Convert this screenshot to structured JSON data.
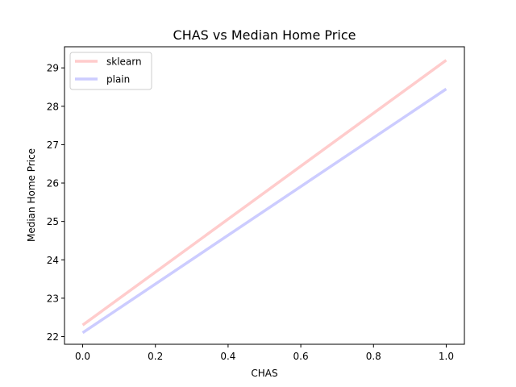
{
  "chart_data": {
    "type": "line",
    "title": "CHAS vs Median Home Price",
    "xlabel": "CHAS",
    "ylabel": "Median Home Price",
    "xlim": [
      -0.05,
      1.05
    ],
    "ylim": [
      21.8,
      29.55
    ],
    "xticks": [
      0.0,
      0.2,
      0.4,
      0.6,
      0.8,
      1.0
    ],
    "xtick_labels": [
      "0.0",
      "0.2",
      "0.4",
      "0.6",
      "0.8",
      "1.0"
    ],
    "yticks": [
      22,
      23,
      24,
      25,
      26,
      27,
      28,
      29
    ],
    "ytick_labels": [
      "22",
      "23",
      "24",
      "25",
      "26",
      "27",
      "28",
      "29"
    ],
    "grid": false,
    "legend_position": "top-left",
    "series": [
      {
        "name": "sklearn",
        "color": "#ffcccc",
        "x": [
          0.0,
          1.0
        ],
        "y": [
          22.3,
          29.2
        ]
      },
      {
        "name": "plain",
        "color": "#ccccff",
        "x": [
          0.0,
          1.0
        ],
        "y": [
          22.1,
          28.45
        ]
      }
    ]
  }
}
